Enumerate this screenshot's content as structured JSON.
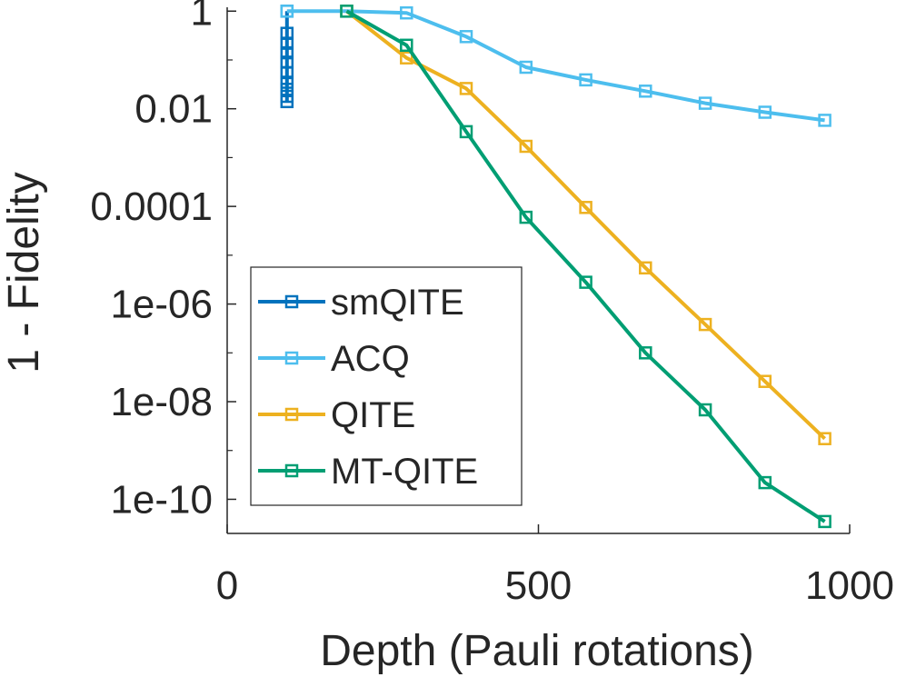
{
  "chart_data": {
    "type": "line",
    "xlabel": "Depth (Pauli rotations)",
    "ylabel": "1 - Fidelity",
    "xlim": [
      0,
      1000
    ],
    "ylim": [
      2e-11,
      1.2
    ],
    "yscale": "log",
    "grid": false,
    "legend_position": "bottom-left",
    "x_ticks": [
      0,
      500,
      1000
    ],
    "x_tick_labels": [
      "0",
      "500",
      "1000"
    ],
    "y_ticks": [
      1,
      0.01,
      0.0001,
      1e-06,
      1e-08,
      1e-10
    ],
    "y_tick_labels": [
      "1",
      "0.01",
      "0.0001",
      "1e-06",
      "1e-08",
      "1e-10"
    ],
    "series": [
      {
        "name": "smQITE",
        "color": "#0072BD",
        "marker": "square",
        "x": [
          96,
          96,
          96,
          96,
          96,
          96,
          96,
          96,
          96,
          96
        ],
        "y": [
          1.0,
          0.35,
          0.22,
          0.14,
          0.09,
          0.055,
          0.035,
          0.025,
          0.018,
          0.014
        ]
      },
      {
        "name": "ACQ",
        "color": "#4DBEEE",
        "marker": "square",
        "x": [
          96,
          192,
          288,
          384,
          480,
          576,
          672,
          768,
          864,
          960
        ],
        "y": [
          1.0,
          1.0,
          0.92,
          0.3,
          0.071,
          0.039,
          0.023,
          0.013,
          0.0085,
          0.0058
        ]
      },
      {
        "name": "QITE",
        "color": "#EDB120",
        "marker": "square",
        "x": [
          192,
          288,
          384,
          480,
          576,
          672,
          768,
          864,
          960
        ],
        "y": [
          1.0,
          0.11,
          0.026,
          0.0017,
          9.5e-05,
          5.5e-06,
          3.8e-07,
          2.6e-08,
          1.75e-09
        ]
      },
      {
        "name": "MT-QITE",
        "color": "#009E73",
        "marker": "square",
        "x": [
          192,
          288,
          384,
          480,
          576,
          672,
          768,
          864,
          960
        ],
        "y": [
          1.0,
          0.2,
          0.0034,
          6e-05,
          2.8e-06,
          1e-07,
          6.8e-09,
          2.2e-10,
          3.5e-11
        ]
      }
    ]
  }
}
